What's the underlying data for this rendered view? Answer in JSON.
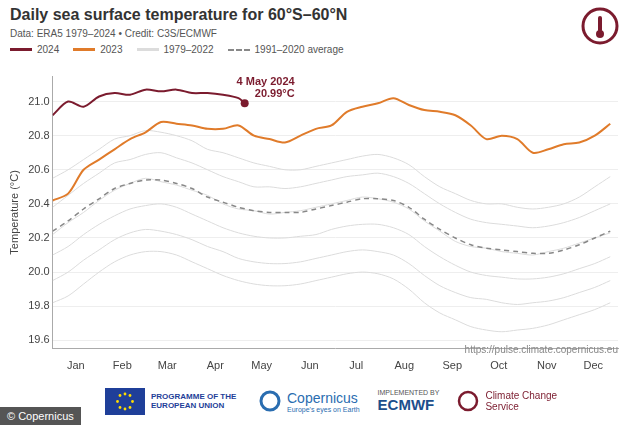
{
  "chart_data": {
    "type": "line",
    "title": "Daily sea surface temperature for 60°S–60°N",
    "subtitle": "Data: ERA5 1979–2024 • Credit: C3S/ECMWF",
    "y_label": "Temperature (°C)",
    "source": "https://pulse.climate.copernicus.eu",
    "x": [
      1,
      11,
      21,
      31,
      41,
      51,
      61,
      71,
      81,
      91,
      101,
      111,
      121,
      131,
      141,
      151,
      161,
      171,
      181,
      191,
      201,
      211,
      221,
      231,
      241,
      251,
      261,
      271,
      281,
      291,
      301,
      311,
      321,
      331,
      341,
      351,
      361
    ],
    "xlim": [
      1,
      366
    ],
    "xticks": [
      {
        "value": 16,
        "label": "Jan"
      },
      {
        "value": 46,
        "label": "Feb"
      },
      {
        "value": 75,
        "label": "Mar"
      },
      {
        "value": 106,
        "label": "Apr"
      },
      {
        "value": 136,
        "label": "May"
      },
      {
        "value": 167,
        "label": "Jun"
      },
      {
        "value": 197,
        "label": "Jul"
      },
      {
        "value": 228,
        "label": "Aug"
      },
      {
        "value": 259,
        "label": "Sep"
      },
      {
        "value": 289,
        "label": "Oct"
      },
      {
        "value": 320,
        "label": "Nov"
      },
      {
        "value": 350,
        "label": "Dec"
      }
    ],
    "ylim": [
      19.55,
      21.15
    ],
    "yticks": [
      19.6,
      19.8,
      {
        "value": 20,
        "label": "20.0"
      },
      20.2,
      20.4,
      20.6,
      20.8,
      {
        "value": 21,
        "label": "21.0"
      }
    ],
    "grid": true,
    "series": [
      {
        "name": "2024",
        "color": "#7b1b2e",
        "line_style": "solid",
        "x": [
          1,
          11,
          21,
          31,
          41,
          51,
          61,
          71,
          81,
          91,
          101,
          111,
          121,
          125
        ],
        "values": [
          20.92,
          21.0,
          20.97,
          21.03,
          21.05,
          21.04,
          21.07,
          21.06,
          21.07,
          21.05,
          21.05,
          21.04,
          21.02,
          20.99
        ]
      },
      {
        "name": "2023",
        "color": "#e07b2a",
        "line_style": "solid",
        "values": [
          20.42,
          20.46,
          20.6,
          20.66,
          20.72,
          20.78,
          20.82,
          20.88,
          20.87,
          20.86,
          20.84,
          20.84,
          20.86,
          20.8,
          20.78,
          20.76,
          20.8,
          20.84,
          20.86,
          20.94,
          20.97,
          20.99,
          21.02,
          20.98,
          20.95,
          20.94,
          20.92,
          20.86,
          20.78,
          20.8,
          20.78,
          20.7,
          20.72,
          20.75,
          20.76,
          20.8,
          20.87
        ]
      },
      {
        "name": "1979–2022",
        "color": "#dcdcdc",
        "line_style": "solid",
        "values": [
          [
            20.55,
            20.6,
            20.66,
            20.72,
            20.78,
            20.8,
            20.83,
            20.82,
            20.8,
            20.77,
            20.72,
            20.7,
            20.67,
            20.64,
            20.62,
            20.6,
            20.6,
            20.62,
            20.64,
            20.66,
            20.68,
            20.69,
            20.67,
            20.63,
            20.56,
            20.5,
            20.46,
            20.42,
            20.4,
            20.4,
            20.38,
            20.37,
            20.38,
            20.4,
            20.44,
            20.5,
            20.56
          ],
          [
            20.38,
            20.45,
            20.52,
            20.58,
            20.64,
            20.66,
            20.69,
            20.7,
            20.67,
            20.64,
            20.6,
            20.56,
            20.53,
            20.5,
            20.5,
            20.49,
            20.5,
            20.52,
            20.54,
            20.56,
            20.57,
            20.58,
            20.56,
            20.52,
            20.46,
            20.4,
            20.35,
            20.31,
            20.29,
            20.28,
            20.27,
            20.26,
            20.27,
            20.29,
            20.32,
            20.36,
            20.4
          ],
          [
            20.22,
            20.29,
            20.35,
            20.42,
            20.48,
            20.52,
            20.55,
            20.53,
            20.51,
            20.48,
            20.45,
            20.4,
            20.37,
            20.36,
            20.34,
            20.35,
            20.36,
            20.38,
            20.4,
            20.42,
            20.44,
            20.43,
            20.41,
            20.37,
            20.3,
            20.24,
            20.18,
            20.15,
            20.14,
            20.12,
            20.11,
            20.1,
            20.12,
            20.14,
            20.17,
            20.2,
            20.23
          ],
          [
            20.1,
            20.15,
            20.22,
            20.28,
            20.33,
            20.37,
            20.39,
            20.4,
            20.38,
            20.34,
            20.3,
            20.26,
            20.23,
            20.21,
            20.2,
            20.2,
            20.21,
            20.22,
            20.25,
            20.27,
            20.28,
            20.28,
            20.26,
            20.22,
            20.15,
            20.09,
            20.04,
            20.0,
            19.98,
            19.97,
            19.96,
            19.96,
            19.97,
            19.99,
            20.02,
            20.05,
            20.09
          ],
          [
            19.95,
            20.0,
            20.07,
            20.13,
            20.19,
            20.23,
            20.25,
            20.24,
            20.22,
            20.19,
            20.15,
            20.12,
            20.08,
            20.06,
            20.05,
            20.05,
            20.06,
            20.08,
            20.1,
            20.12,
            20.13,
            20.12,
            20.1,
            20.05,
            19.98,
            19.92,
            19.88,
            19.85,
            19.84,
            19.82,
            19.81,
            19.82,
            19.83,
            19.85,
            19.88,
            19.91,
            19.95
          ],
          [
            19.82,
            19.86,
            19.93,
            20.0,
            20.06,
            20.1,
            20.12,
            20.12,
            20.1,
            20.06,
            20.02,
            19.98,
            19.95,
            19.93,
            19.92,
            19.92,
            19.93,
            19.95,
            19.97,
            19.99,
            20.0,
            19.99,
            19.96,
            19.9,
            19.82,
            19.76,
            19.72,
            19.68,
            19.66,
            19.65,
            19.66,
            19.67,
            19.69,
            19.72,
            19.75,
            19.78,
            19.82
          ]
        ]
      },
      {
        "name": "1991–2020 average",
        "color": "#888888",
        "line_style": "dashed",
        "values": [
          20.24,
          20.3,
          20.37,
          20.43,
          20.49,
          20.52,
          20.54,
          20.54,
          20.52,
          20.49,
          20.44,
          20.41,
          20.38,
          20.36,
          20.35,
          20.35,
          20.35,
          20.37,
          20.39,
          20.41,
          20.43,
          20.43,
          20.42,
          20.38,
          20.31,
          20.25,
          20.2,
          20.16,
          20.14,
          20.13,
          20.12,
          20.11,
          20.11,
          20.13,
          20.16,
          20.2,
          20.24
        ]
      }
    ],
    "annotations": [
      {
        "series": "2024",
        "x": 125,
        "y": 20.99,
        "label": "4 May 2024",
        "value_label": "20.99°C"
      }
    ]
  },
  "footer": {
    "eu": "PROGRAMME OF THE EUROPEAN UNION",
    "copernicus": "Copernicus",
    "copernicus_tagline": "Europe's eyes on Earth",
    "implemented": "IMPLEMENTED BY",
    "ecmwf": "ECMWF",
    "c3s": "Climate Change Service",
    "credit": "© Copernicus"
  }
}
